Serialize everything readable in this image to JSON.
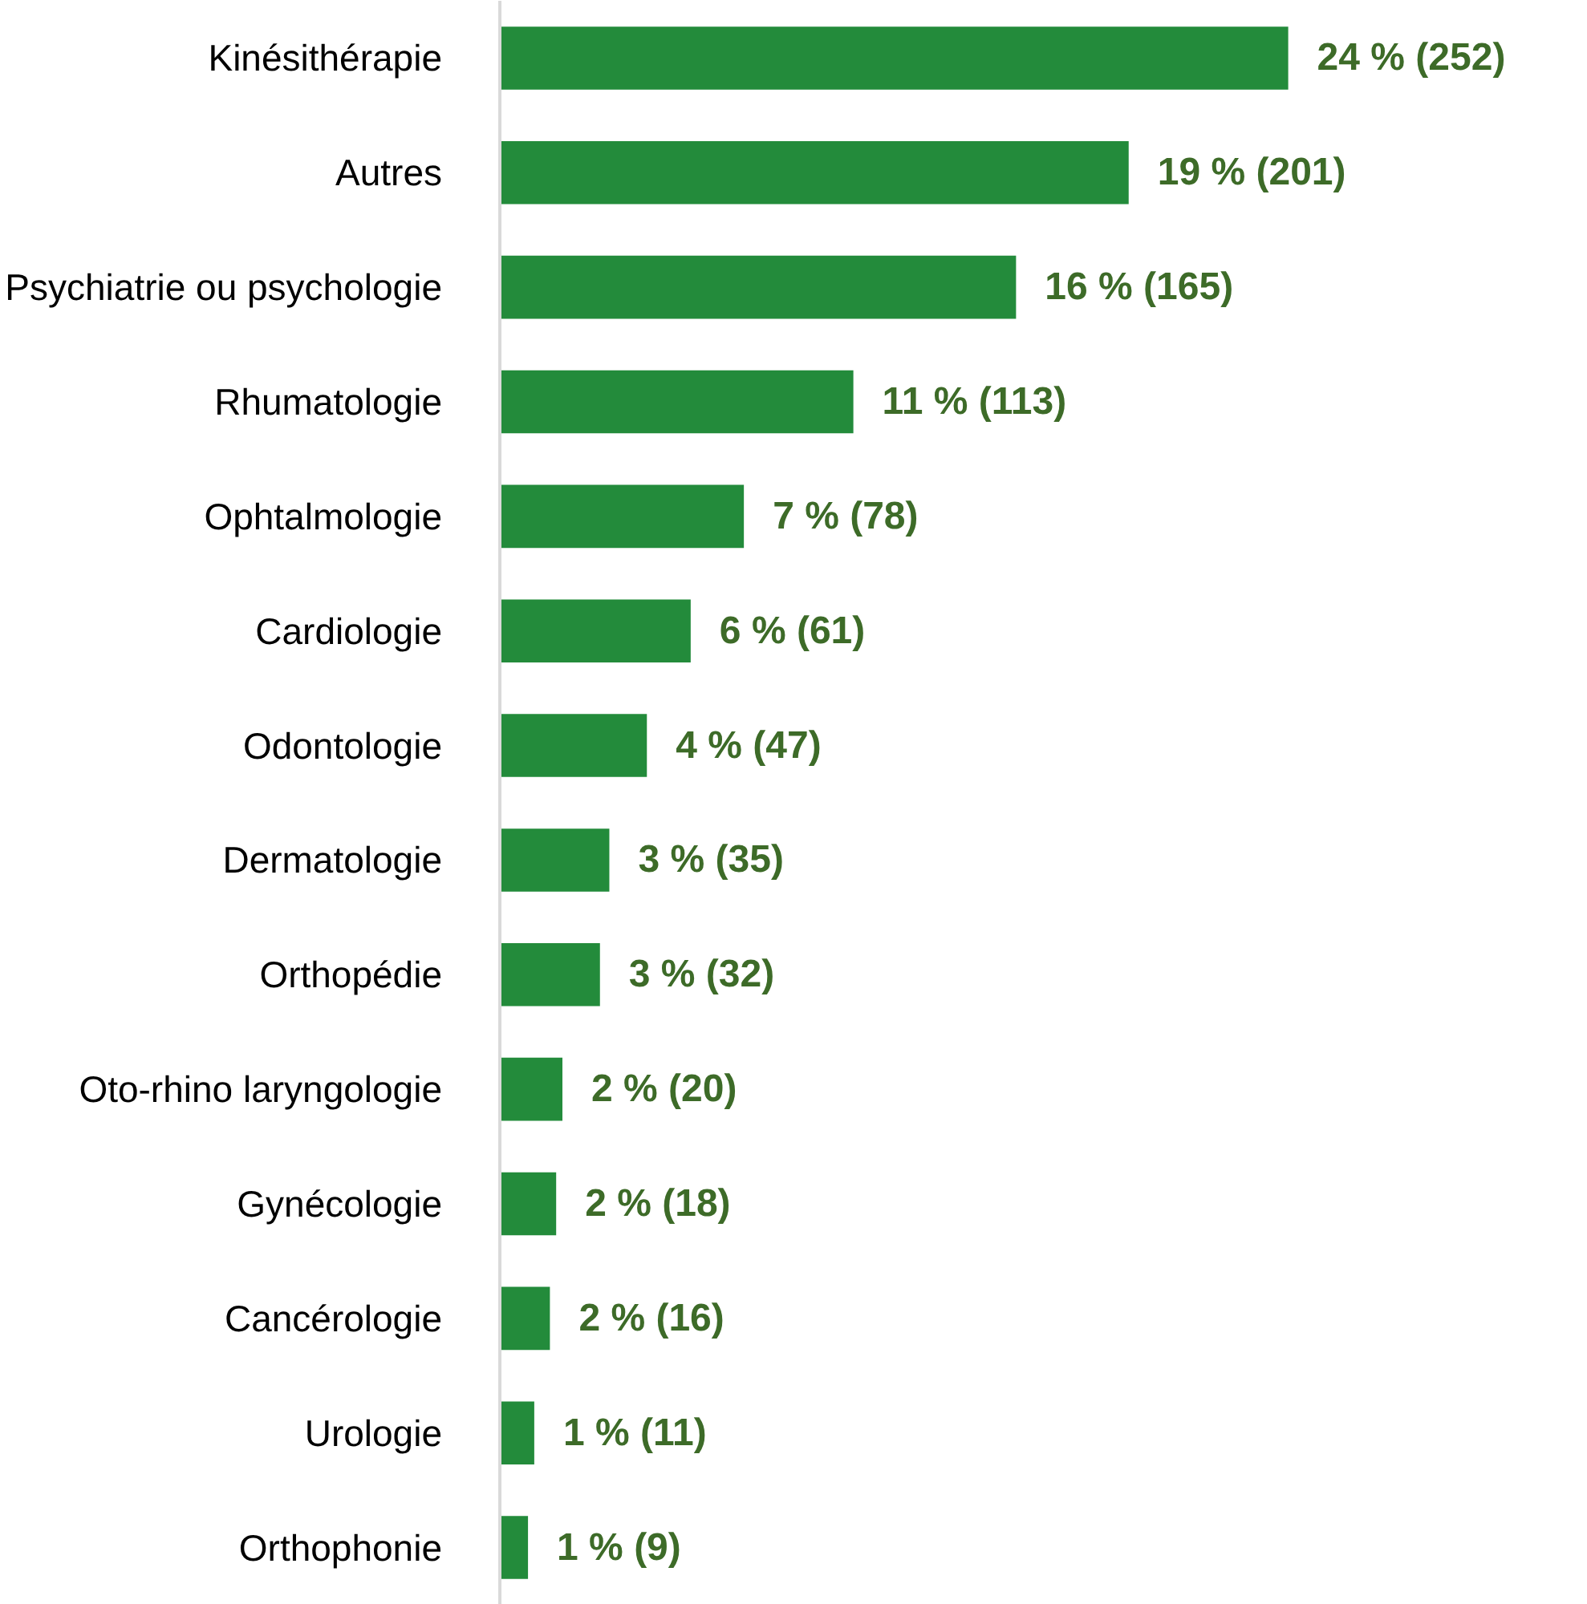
{
  "chart_data": {
    "type": "bar",
    "orientation": "horizontal",
    "categories": [
      "Kinésithérapie",
      "Autres",
      "Psychiatrie ou psychologie",
      "Rhumatologie",
      "Ophtalmologie",
      "Cardiologie",
      "Odontologie",
      "Dermatologie",
      "Orthopédie",
      "Oto-rhino laryngologie",
      "Gynécologie",
      "Cancérologie",
      "Urologie",
      "Orthophonie"
    ],
    "values": [
      252,
      201,
      165,
      113,
      78,
      61,
      47,
      35,
      32,
      20,
      18,
      16,
      11,
      9
    ],
    "value_labels": [
      "24 % (252)",
      "19 % (201)",
      "16 % (165)",
      "11 % (113)",
      "7 % (78)",
      "6 % (61)",
      "4 % (47)",
      "3 % (35)",
      "3 % (32)",
      "2 % (20)",
      "2 % (18)",
      "2 % (16)",
      "1 % (11)",
      "1 % (9)"
    ],
    "color": "#238b3b"
  }
}
